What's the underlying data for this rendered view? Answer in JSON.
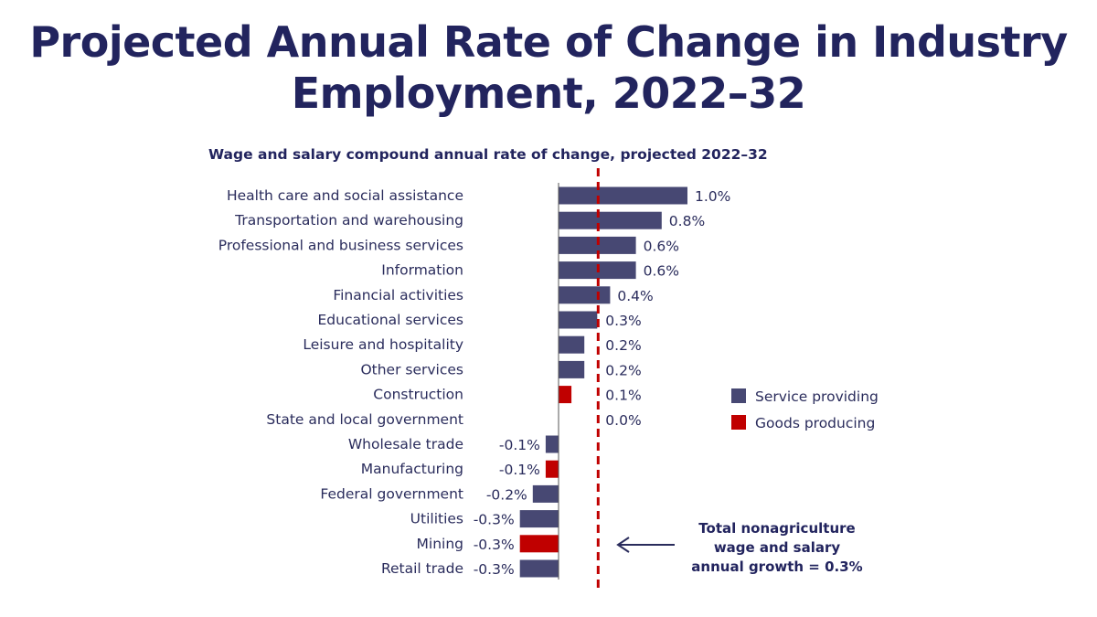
{
  "chart_data": {
    "type": "bar",
    "orientation": "horizontal",
    "title": "Projected Annual Rate of Change in Industry Employment, 2022–32",
    "subtitle": "Wage and salary compound annual rate of change, projected 2022–32",
    "categories": [
      "Health care and social assistance",
      "Transportation and warehousing",
      "Professional and business services",
      "Information",
      "Financial activities",
      "Educational services",
      "Leisure and hospitality",
      "Other services",
      "Construction",
      "State and local government",
      "Wholesale trade",
      "Manufacturing",
      "Federal government",
      "Utilities",
      "Mining",
      "Retail trade"
    ],
    "values": [
      1.0,
      0.8,
      0.6,
      0.6,
      0.4,
      0.3,
      0.2,
      0.2,
      0.1,
      0.0,
      -0.1,
      -0.1,
      -0.2,
      -0.3,
      -0.3,
      -0.3
    ],
    "value_labels": [
      "1.0%",
      "0.8%",
      "0.6%",
      "0.6%",
      "0.4%",
      "0.3%",
      "0.2%",
      "0.2%",
      "0.1%",
      "0.0%",
      "-0.1%",
      "-0.1%",
      "-0.2%",
      "-0.3%",
      "-0.3%",
      "-0.3%"
    ],
    "groups": [
      "service",
      "service",
      "service",
      "service",
      "service",
      "service",
      "service",
      "service",
      "goods",
      "service",
      "service",
      "goods",
      "service",
      "service",
      "goods",
      "service"
    ],
    "legend": [
      {
        "key": "service",
        "label": "Service providing",
        "color": "#474873"
      },
      {
        "key": "goods",
        "label": "Goods producing",
        "color": "#c00000"
      }
    ],
    "legend_position": "right",
    "reference_line": {
      "value": 0.3,
      "color": "#c00000",
      "style": "dashed"
    },
    "annotation": [
      "Total nonagriculture",
      "wage and salary",
      "annual growth = 0.3%"
    ],
    "xlim": [
      -0.3,
      1.0
    ]
  }
}
